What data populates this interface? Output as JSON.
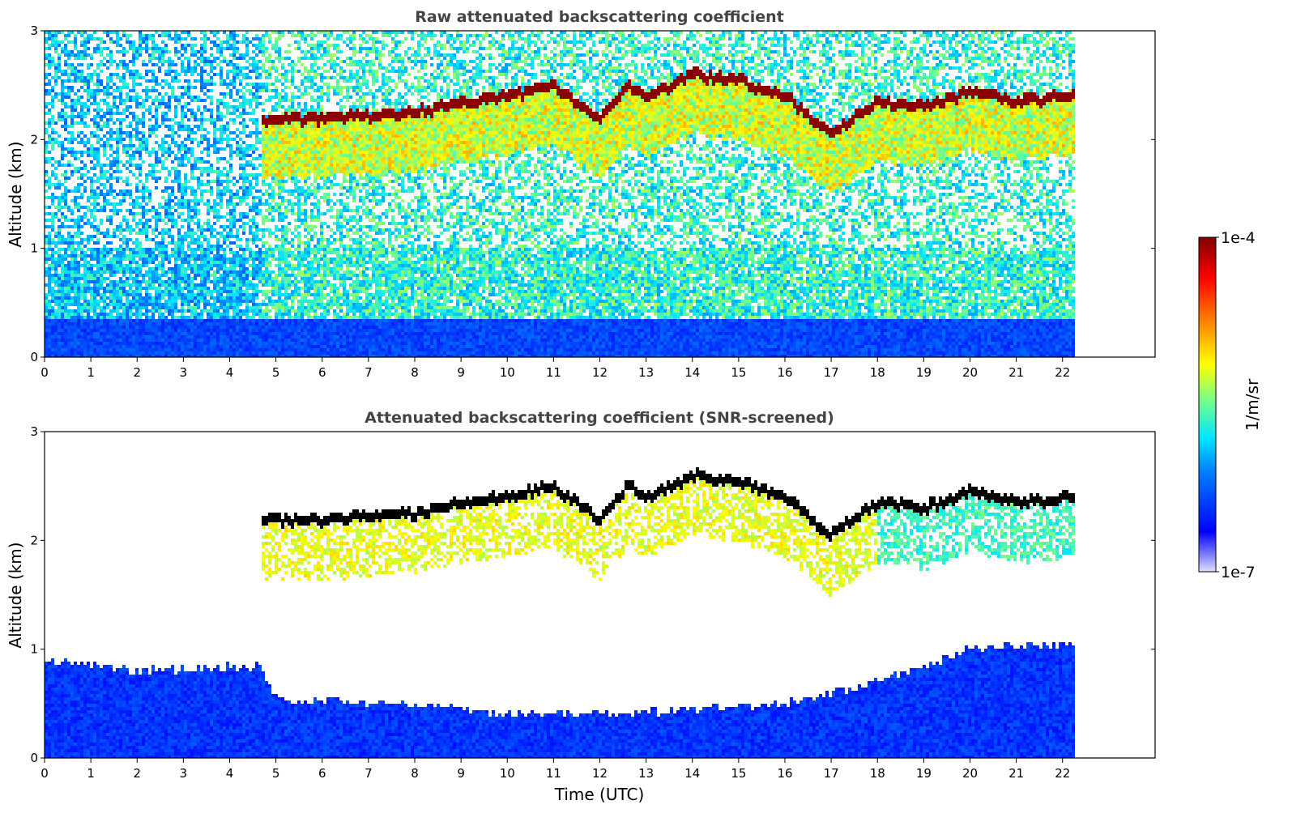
{
  "chart_data": [
    {
      "type": "heatmap",
      "title": "Raw attenuated backscattering coefficient",
      "xlabel": "",
      "ylabel": "Altitude (km)",
      "xlim": [
        0,
        24
      ],
      "ylim": [
        0,
        3
      ],
      "x_ticks": [
        "0",
        "1",
        "2",
        "3",
        "4",
        "5",
        "6",
        "7",
        "8",
        "9",
        "10",
        "11",
        "12",
        "13",
        "14",
        "15",
        "16",
        "17",
        "18",
        "19",
        "20",
        "21",
        "22"
      ],
      "y_ticks": [
        "0",
        "1",
        "2",
        "3"
      ],
      "data_time_range": [
        0,
        22.3
      ],
      "cloud_base_top_km": [
        {
          "t": 4.8,
          "alt": 2.2
        },
        {
          "t": 6.0,
          "alt": 2.2
        },
        {
          "t": 7.0,
          "alt": 2.22
        },
        {
          "t": 8.0,
          "alt": 2.25
        },
        {
          "t": 9.0,
          "alt": 2.35
        },
        {
          "t": 10.0,
          "alt": 2.4
        },
        {
          "t": 11.0,
          "alt": 2.5
        },
        {
          "t": 12.0,
          "alt": 2.2
        },
        {
          "t": 12.6,
          "alt": 2.5
        },
        {
          "t": 13.0,
          "alt": 2.4
        },
        {
          "t": 14.0,
          "alt": 2.6
        },
        {
          "t": 15.0,
          "alt": 2.55
        },
        {
          "t": 16.0,
          "alt": 2.4
        },
        {
          "t": 17.0,
          "alt": 2.05
        },
        {
          "t": 18.0,
          "alt": 2.35
        },
        {
          "t": 19.0,
          "alt": 2.3
        },
        {
          "t": 20.0,
          "alt": 2.45
        },
        {
          "t": 21.0,
          "alt": 2.35
        },
        {
          "t": 22.3,
          "alt": 2.4
        }
      ]
    },
    {
      "type": "heatmap",
      "title": "Attenuated backscattering coefficient (SNR-screened)",
      "xlabel": "Time (UTC)",
      "ylabel": "Altitude (km)",
      "xlim": [
        0,
        24
      ],
      "ylim": [
        0,
        3
      ],
      "x_ticks": [
        "0",
        "1",
        "2",
        "3",
        "4",
        "5",
        "6",
        "7",
        "8",
        "9",
        "10",
        "11",
        "12",
        "13",
        "14",
        "15",
        "16",
        "17",
        "18",
        "19",
        "20",
        "21",
        "22"
      ],
      "y_ticks": [
        "0",
        "1",
        "2",
        "3"
      ],
      "data_time_range": [
        0,
        22.3
      ],
      "boundary_layer_top_km": [
        {
          "t": 0,
          "alt": 0.9
        },
        {
          "t": 2,
          "alt": 0.8
        },
        {
          "t": 4.7,
          "alt": 0.85
        },
        {
          "t": 5.0,
          "alt": 0.55
        },
        {
          "t": 8.0,
          "alt": 0.5
        },
        {
          "t": 10.0,
          "alt": 0.4
        },
        {
          "t": 12.0,
          "alt": 0.4
        },
        {
          "t": 14.0,
          "alt": 0.45
        },
        {
          "t": 16.0,
          "alt": 0.5
        },
        {
          "t": 18.0,
          "alt": 0.7
        },
        {
          "t": 19.0,
          "alt": 0.85
        },
        {
          "t": 20.0,
          "alt": 1.0
        },
        {
          "t": 22.3,
          "alt": 1.05
        }
      ]
    }
  ],
  "colorbar": {
    "label": "1/m/sr",
    "max_label": "1e-4",
    "min_label": "1e-7",
    "colormap": "jet"
  },
  "colors": {
    "saturated_cloud_raw": "#8b0000",
    "saturated_cloud_screened": "#000000",
    "background": "#ffffff"
  }
}
